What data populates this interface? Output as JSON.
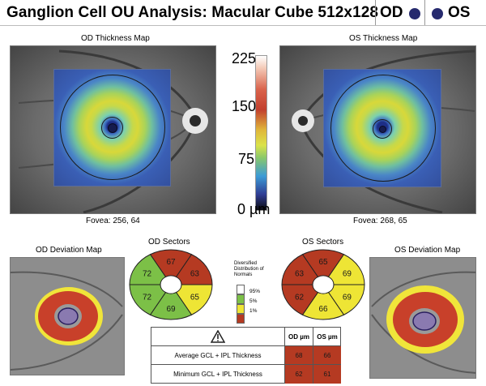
{
  "header": {
    "title": "Ganglion Cell OU Analysis: Macular Cube 512x128",
    "od_label": "OD",
    "os_label": "OS",
    "eye_dot_color": "#262a6e"
  },
  "od_thickness": {
    "title": "OD Thickness Map",
    "fovea": "Fovea: 256, 64"
  },
  "os_thickness": {
    "title": "OS Thickness Map",
    "fovea": "Fovea: 268, 65"
  },
  "colorbar": {
    "ticks": [
      "225",
      "150",
      "75",
      "0 µm"
    ]
  },
  "od_deviation": {
    "title": "OD Deviation Map"
  },
  "os_deviation": {
    "title": "OS Deviation Map"
  },
  "od_sectors": {
    "title": "OD Sectors",
    "values": {
      "top": "67",
      "top_right": "63",
      "bottom_right": "65",
      "bottom": "69",
      "bottom_left": "72",
      "top_left": "72"
    },
    "colors": {
      "top": "#b53a22",
      "top_right": "#b53a22",
      "bottom_right": "#eee535",
      "bottom": "#7cc047",
      "bottom_left": "#7cc047",
      "top_left": "#7cc047"
    }
  },
  "os_sectors": {
    "title": "OS Sectors",
    "values": {
      "top": "65",
      "top_right": "69",
      "bottom_right": "69",
      "bottom": "66",
      "bottom_left": "62",
      "top_left": "63"
    },
    "colors": {
      "top": "#b53a22",
      "top_right": "#eee535",
      "bottom_right": "#eee535",
      "bottom": "#eee535",
      "bottom_left": "#b53a22",
      "top_left": "#b53a22"
    }
  },
  "legend": {
    "title": "Diversified Distribution of Normals",
    "items": [
      {
        "label": "95%",
        "color": "#ffffff"
      },
      {
        "label": "5%",
        "color": "#7cc047"
      },
      {
        "label": "1%",
        "color": "#eee535"
      },
      {
        "label": "",
        "color": "#b53a22"
      }
    ]
  },
  "table": {
    "warning_icon": "warning-triangle-icon",
    "col_od": "OD µm",
    "col_os": "OS µm",
    "rows": [
      {
        "label": "Average GCL + IPL Thickness",
        "od": "68",
        "os": "66"
      },
      {
        "label": "Minimum GCL + IPL Thickness",
        "od": "62",
        "os": "61"
      }
    ]
  }
}
